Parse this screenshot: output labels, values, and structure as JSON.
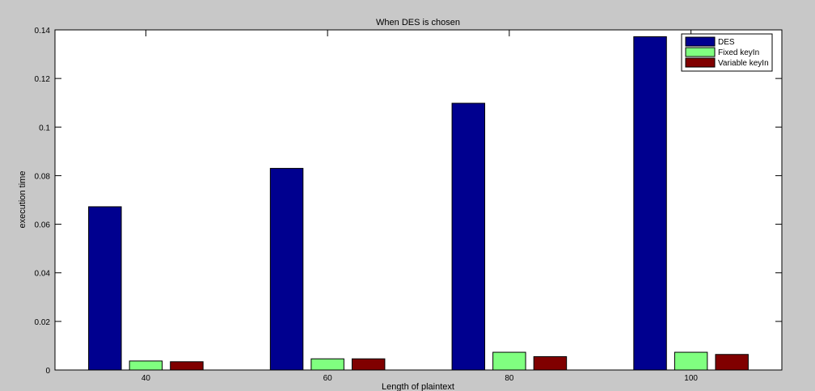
{
  "chart_data": {
    "type": "bar",
    "title": "When DES is chosen",
    "xlabel": "Length of plaintext",
    "ylabel": "execution time",
    "categories": [
      "40",
      "60",
      "80",
      "100"
    ],
    "series": [
      {
        "name": "DES",
        "values": [
          0.0672,
          0.083,
          0.1098,
          0.1372
        ],
        "color": "#00008f"
      },
      {
        "name": "Fixed keyIn",
        "values": [
          0.0037,
          0.0046,
          0.0073,
          0.0073
        ],
        "color": "#80ff80"
      },
      {
        "name": "Variable keyIn",
        "values": [
          0.0034,
          0.0046,
          0.0055,
          0.0064
        ],
        "color": "#800000"
      }
    ],
    "ylim": [
      0,
      0.14
    ],
    "yticks": [
      "0",
      "0.02",
      "0.04",
      "0.06",
      "0.08",
      "0.1",
      "0.12",
      "0.14"
    ],
    "grid": false,
    "legend_position": "top-right"
  }
}
